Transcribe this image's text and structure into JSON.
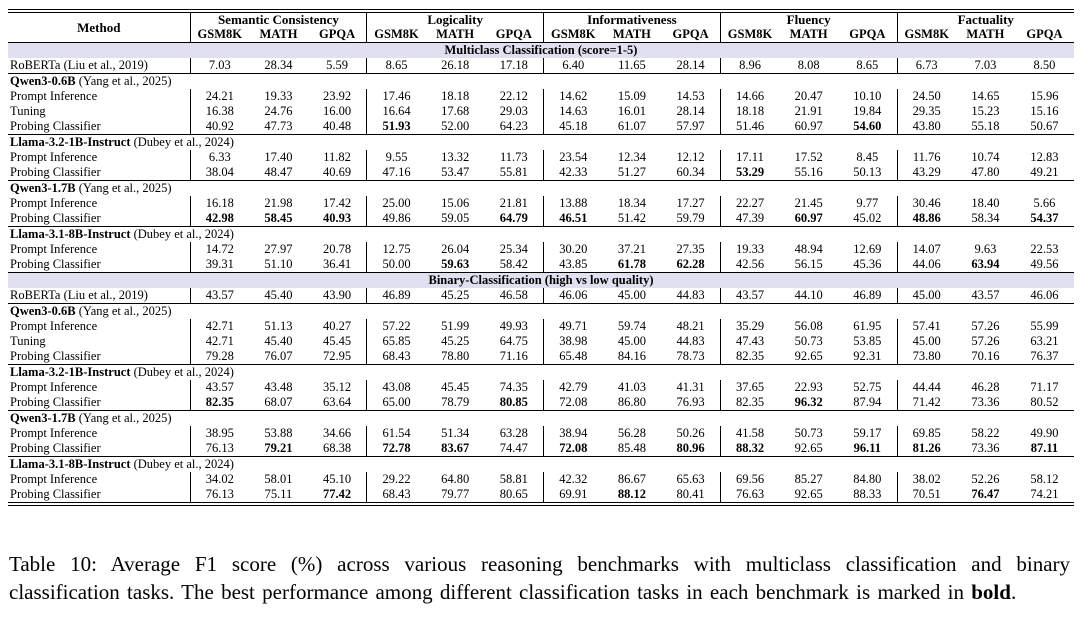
{
  "colors": {
    "band_bg": "#e0e0f0",
    "rule": "#000000",
    "text": "#000000",
    "page_bg": "#ffffff"
  },
  "table": {
    "method_header": "Method",
    "groups": [
      {
        "label": "Semantic Consistency",
        "subcols": [
          "GSM8K",
          "MATH",
          "GPQA"
        ]
      },
      {
        "label": "Logicality",
        "subcols": [
          "GSM8K",
          "MATH",
          "GPQA"
        ]
      },
      {
        "label": "Informativeness",
        "subcols": [
          "GSM8K",
          "MATH",
          "GPQA"
        ]
      },
      {
        "label": "Fluency",
        "subcols": [
          "GSM8K",
          "MATH",
          "GPQA"
        ]
      },
      {
        "label": "Factuality",
        "subcols": [
          "GSM8K",
          "MATH",
          "GPQA"
        ]
      }
    ],
    "sections": [
      {
        "band_label": "Multiclass Classification (score=1-5)",
        "rows": [
          {
            "type": "data",
            "method": "RoBERTa (Liu et al., 2019)",
            "values": [
              "7.03",
              "28.34",
              "5.59",
              "8.65",
              "26.18",
              "17.18",
              "6.40",
              "11.65",
              "28.14",
              "8.96",
              "8.08",
              "8.65",
              "6.73",
              "7.03",
              "8.50"
            ],
            "bold": []
          },
          {
            "type": "group",
            "name": "Qwen3-0.6B",
            "cite": " (Yang et al., 2025)"
          },
          {
            "type": "data",
            "method": "Prompt Inference",
            "values": [
              "24.21",
              "19.33",
              "23.92",
              "17.46",
              "18.18",
              "22.12",
              "14.62",
              "15.09",
              "14.53",
              "14.66",
              "20.47",
              "10.10",
              "24.50",
              "14.65",
              "15.96"
            ],
            "bold": []
          },
          {
            "type": "data",
            "method": "Tuning",
            "values": [
              "16.38",
              "24.76",
              "16.00",
              "16.64",
              "17.68",
              "29.03",
              "14.63",
              "16.01",
              "28.14",
              "18.18",
              "21.91",
              "19.84",
              "29.35",
              "15.23",
              "15.16"
            ],
            "bold": []
          },
          {
            "type": "data",
            "method": "Probing Classifier",
            "values": [
              "40.92",
              "47.73",
              "40.48",
              "51.93",
              "52.00",
              "64.23",
              "45.18",
              "61.07",
              "57.97",
              "51.46",
              "60.97",
              "54.60",
              "43.80",
              "55.18",
              "50.67"
            ],
            "bold": [
              3,
              11
            ]
          },
          {
            "type": "group",
            "name": "Llama-3.2-1B-Instruct",
            "cite": " (Dubey et al., 2024)"
          },
          {
            "type": "data",
            "method": "Prompt Inference",
            "values": [
              "6.33",
              "17.40",
              "11.82",
              "9.55",
              "13.32",
              "11.73",
              "23.54",
              "12.34",
              "12.12",
              "17.11",
              "17.52",
              "8.45",
              "11.76",
              "10.74",
              "12.83"
            ],
            "bold": []
          },
          {
            "type": "data",
            "method": "Probing Classifier",
            "values": [
              "38.04",
              "48.47",
              "40.69",
              "47.16",
              "53.47",
              "55.81",
              "42.33",
              "51.27",
              "60.34",
              "53.29",
              "55.16",
              "50.13",
              "43.29",
              "47.80",
              "49.21"
            ],
            "bold": [
              9
            ]
          },
          {
            "type": "group",
            "name": "Qwen3-1.7B",
            "cite": " (Yang et al., 2025)"
          },
          {
            "type": "data",
            "method": "Prompt Inference",
            "values": [
              "16.18",
              "21.98",
              "17.42",
              "25.00",
              "15.06",
              "21.81",
              "13.88",
              "18.34",
              "17.27",
              "22.27",
              "21.45",
              "9.77",
              "30.46",
              "18.40",
              "5.66"
            ],
            "bold": []
          },
          {
            "type": "data",
            "method": "Probing Classifier",
            "values": [
              "42.98",
              "58.45",
              "40.93",
              "49.86",
              "59.05",
              "64.79",
              "46.51",
              "51.42",
              "59.79",
              "47.39",
              "60.97",
              "45.02",
              "48.86",
              "58.34",
              "54.37"
            ],
            "bold": [
              0,
              1,
              2,
              5,
              6,
              10,
              12,
              14
            ]
          },
          {
            "type": "group",
            "name": "Llama-3.1-8B-Instruct",
            "cite": " (Dubey et al., 2024)"
          },
          {
            "type": "data",
            "method": "Prompt Inference",
            "values": [
              "14.72",
              "27.97",
              "20.78",
              "12.75",
              "26.04",
              "25.34",
              "30.20",
              "37.21",
              "27.35",
              "19.33",
              "48.94",
              "12.69",
              "14.07",
              "9.63",
              "22.53"
            ],
            "bold": []
          },
          {
            "type": "data",
            "method": "Probing Classifier",
            "values": [
              "39.31",
              "51.10",
              "36.41",
              "50.00",
              "59.63",
              "58.42",
              "43.85",
              "61.78",
              "62.28",
              "42.56",
              "56.15",
              "45.36",
              "44.06",
              "63.94",
              "49.56"
            ],
            "bold": [
              4,
              7,
              8,
              13
            ]
          }
        ]
      },
      {
        "band_label": "Binary-Classification (high vs low quality)",
        "rows": [
          {
            "type": "data",
            "method": "RoBERTa (Liu et al., 2019)",
            "values": [
              "43.57",
              "45.40",
              "43.90",
              "46.89",
              "45.25",
              "46.58",
              "46.06",
              "45.00",
              "44.83",
              "43.57",
              "44.10",
              "46.89",
              "45.00",
              "43.57",
              "46.06"
            ],
            "bold": []
          },
          {
            "type": "group",
            "name": "Qwen3-0.6B",
            "cite": " (Yang et al., 2025)"
          },
          {
            "type": "data",
            "method": "Prompt Inference",
            "values": [
              "42.71",
              "51.13",
              "40.27",
              "57.22",
              "51.99",
              "49.93",
              "49.71",
              "59.74",
              "48.21",
              "35.29",
              "56.08",
              "61.95",
              "57.41",
              "57.26",
              "55.99"
            ],
            "bold": []
          },
          {
            "type": "data",
            "method": "Tuning",
            "values": [
              "42.71",
              "45.40",
              "45.45",
              "65.85",
              "45.25",
              "64.75",
              "38.98",
              "45.00",
              "44.83",
              "47.43",
              "50.73",
              "53.85",
              "45.00",
              "57.26",
              "63.21"
            ],
            "bold": []
          },
          {
            "type": "data",
            "method": "Probing Classifier",
            "values": [
              "79.28",
              "76.07",
              "72.95",
              "68.43",
              "78.80",
              "71.16",
              "65.48",
              "84.16",
              "78.73",
              "82.35",
              "92.65",
              "92.31",
              "73.80",
              "70.16",
              "76.37"
            ],
            "bold": []
          },
          {
            "type": "group",
            "name": "Llama-3.2-1B-Instruct",
            "cite": " (Dubey et al., 2024)"
          },
          {
            "type": "data",
            "method": "Prompt Inference",
            "values": [
              "43.57",
              "43.48",
              "35.12",
              "43.08",
              "45.45",
              "74.35",
              "42.79",
              "41.03",
              "41.31",
              "37.65",
              "22.93",
              "52.75",
              "44.44",
              "46.28",
              "71.17"
            ],
            "bold": []
          },
          {
            "type": "data",
            "method": "Probing Classifier",
            "values": [
              "82.35",
              "68.07",
              "63.64",
              "65.00",
              "78.79",
              "80.85",
              "72.08",
              "86.80",
              "76.93",
              "82.35",
              "96.32",
              "87.94",
              "71.42",
              "73.36",
              "80.52"
            ],
            "bold": [
              0,
              5,
              10
            ]
          },
          {
            "type": "group",
            "name": "Qwen3-1.7B",
            "cite": " (Yang et al., 2025)"
          },
          {
            "type": "data",
            "method": "Prompt Inference",
            "values": [
              "38.95",
              "53.88",
              "34.66",
              "61.54",
              "51.34",
              "63.28",
              "38.94",
              "56.28",
              "50.26",
              "41.58",
              "50.73",
              "59.17",
              "69.85",
              "58.22",
              "49.90"
            ],
            "bold": []
          },
          {
            "type": "data",
            "method": "Probing Classifier",
            "values": [
              "76.13",
              "79.21",
              "68.38",
              "72.78",
              "83.67",
              "74.47",
              "72.08",
              "85.48",
              "80.96",
              "88.32",
              "92.65",
              "96.11",
              "81.26",
              "73.36",
              "87.11"
            ],
            "bold": [
              1,
              3,
              4,
              6,
              8,
              9,
              11,
              12,
              14
            ]
          },
          {
            "type": "group",
            "name": "Llama-3.1-8B-Instruct",
            "cite": " (Dubey et al., 2024)"
          },
          {
            "type": "data",
            "method": "Prompt Inference",
            "values": [
              "34.02",
              "58.01",
              "45.10",
              "29.22",
              "64.80",
              "58.81",
              "42.32",
              "86.67",
              "65.63",
              "69.56",
              "85.27",
              "84.80",
              "38.02",
              "52.26",
              "58.12"
            ],
            "bold": []
          },
          {
            "type": "data",
            "method": "Probing Classifier",
            "values": [
              "76.13",
              "75.11",
              "77.42",
              "68.43",
              "79.77",
              "80.65",
              "69.91",
              "88.12",
              "80.41",
              "76.63",
              "92.65",
              "88.33",
              "70.51",
              "76.47",
              "74.21"
            ],
            "bold": [
              2,
              7,
              13
            ]
          }
        ]
      }
    ]
  },
  "caption": {
    "tag": "Table 10:",
    "text_before_bold": " Average F1 score (%) across various reasoning benchmarks with multiclass classification and binary classification tasks. The best performance among different classification tasks in each benchmark is marked in ",
    "bold_word": "bold",
    "text_after_bold": "."
  }
}
